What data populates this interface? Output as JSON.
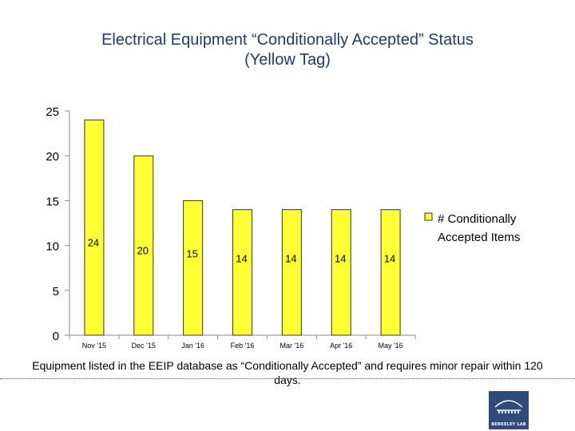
{
  "title": {
    "line1": "Electrical Equipment “Conditionally Accepted” Status",
    "line2": "(Yellow Tag)"
  },
  "chart_data": {
    "type": "bar",
    "categories": [
      "Nov '15",
      "Dec '15",
      "Jan '16",
      "Feb '16",
      "Mar '16",
      "Apr '16",
      "May '16"
    ],
    "series": [
      {
        "name": "# Conditionally Accepted Items",
        "values": [
          24,
          20,
          15,
          14,
          14,
          14,
          14
        ]
      }
    ],
    "ylim": [
      0,
      25
    ],
    "yticks": [
      0,
      5,
      10,
      15,
      20,
      25
    ],
    "data_labels": true,
    "legend": "right",
    "grid": false,
    "colors": {
      "bar_fill": "#ffff33",
      "bar_stroke": "#333333",
      "axis": "#888888"
    }
  },
  "legend": {
    "line1": "# Conditionally",
    "line2": "Accepted Items"
  },
  "footnote": "Equipment listed in the EEIP database as “Conditionally Accepted” and requires minor repair within 120 days.",
  "logo": {
    "icon": "berkeley-lab-logo",
    "text": "BERKELEY LAB"
  }
}
